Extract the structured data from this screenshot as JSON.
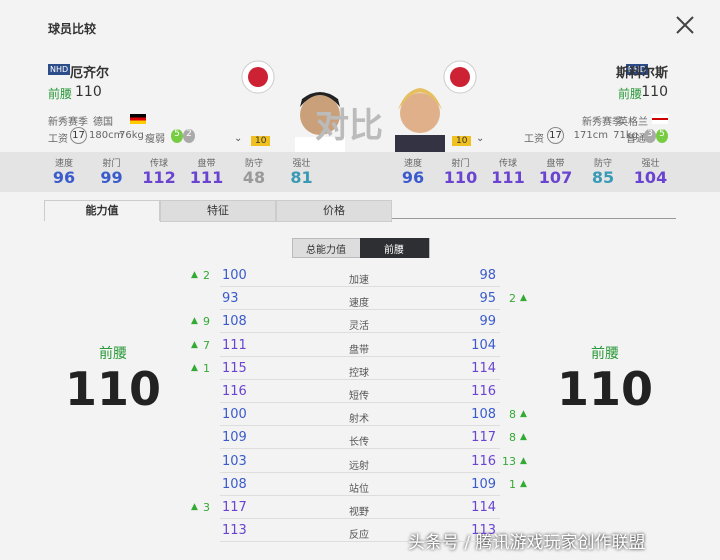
{
  "header": {
    "title": "球员比较"
  },
  "players": [
    {
      "badge": "NHD",
      "name": "厄齐尔",
      "position": "前腰",
      "rating": 110,
      "season": "新秀赛季",
      "nation": "德国",
      "wage_label": "工资",
      "wage": 17,
      "height": "180cm",
      "weight": "76kg",
      "build": "瘦弱",
      "weak_foot": 5,
      "skill": 2,
      "boost": 10,
      "stats": [
        {
          "label": "速度",
          "value": 96
        },
        {
          "label": "射门",
          "value": 99
        },
        {
          "label": "传球",
          "value": 112
        },
        {
          "label": "盘带",
          "value": 111
        },
        {
          "label": "防守",
          "value": 48
        },
        {
          "label": "强壮",
          "value": 81
        }
      ]
    },
    {
      "badge": "NHD",
      "name": "斯科尔斯",
      "position": "前腰",
      "rating": 110,
      "season": "新秀赛季",
      "nation": "英格兰",
      "wage_label": "工资",
      "wage": 17,
      "height": "171cm",
      "weight": "71kg",
      "build": "普通",
      "weak_foot": 3,
      "skill": 5,
      "boost": 10,
      "stats": [
        {
          "label": "速度",
          "value": 96
        },
        {
          "label": "射门",
          "value": 110
        },
        {
          "label": "传球",
          "value": 111
        },
        {
          "label": "盘带",
          "value": 107
        },
        {
          "label": "防守",
          "value": 85
        },
        {
          "label": "强壮",
          "value": 104
        }
      ]
    }
  ],
  "vs_text": "对比",
  "tabs": [
    "能力值",
    "特征",
    "价格"
  ],
  "subtabs": [
    "总能力值",
    "前腰"
  ],
  "summary": [
    {
      "position": "前腰",
      "rating": 110
    },
    {
      "position": "前腰",
      "rating": 110
    }
  ],
  "rows": [
    {
      "attr": "加速",
      "left": 100,
      "right": 98,
      "left_diff": 2
    },
    {
      "attr": "速度",
      "left": 93,
      "right": 95,
      "right_diff": 2
    },
    {
      "attr": "灵活",
      "left": 108,
      "right": 99,
      "left_diff": 9
    },
    {
      "attr": "盘带",
      "left": 111,
      "right": 104,
      "left_diff": 7
    },
    {
      "attr": "控球",
      "left": 115,
      "right": 114,
      "left_diff": 1
    },
    {
      "attr": "短传",
      "left": 116,
      "right": 116
    },
    {
      "attr": "射术",
      "left": 100,
      "right": 108,
      "right_diff": 8
    },
    {
      "attr": "长传",
      "left": 109,
      "right": 117,
      "right_diff": 8
    },
    {
      "attr": "远射",
      "left": 103,
      "right": 116,
      "right_diff": 13
    },
    {
      "attr": "站位",
      "left": 108,
      "right": 109,
      "right_diff": 1
    },
    {
      "attr": "视野",
      "left": 117,
      "right": 114,
      "left_diff": 3
    },
    {
      "attr": "反应",
      "left": 113,
      "right": 113
    }
  ],
  "watermark": "头条号 / 腾讯游戏玩家创作联盟"
}
